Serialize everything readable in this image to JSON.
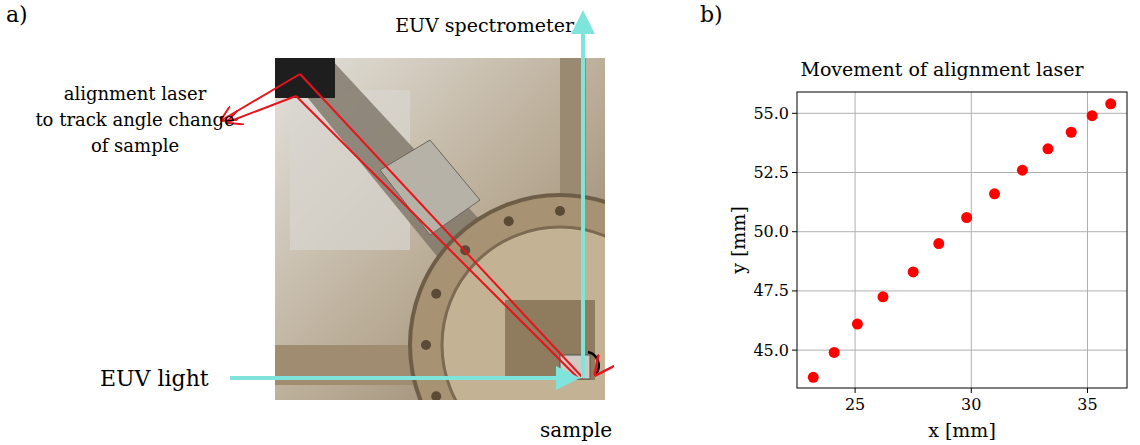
{
  "panel_a": {
    "label": "a)",
    "spectrometer_label": "EUV spectrometer",
    "laser_label": [
      "alignment laser",
      "to track angle change",
      "of sample"
    ],
    "light_label": "EUV light",
    "sample_label": "sample"
  },
  "chart_data": {
    "type": "scatter",
    "panel_label": "b)",
    "title": "Movement of alignment laser",
    "x_label": "x [mm]",
    "y_label": "y [mm]",
    "x": [
      23.2,
      24.1,
      25.1,
      26.2,
      27.5,
      28.6,
      29.8,
      31.0,
      32.2,
      33.3,
      34.3,
      35.2,
      36.0
    ],
    "values": [
      43.85,
      44.9,
      46.1,
      47.25,
      48.3,
      49.5,
      50.6,
      51.6,
      52.6,
      53.5,
      54.2,
      54.9,
      55.4
    ],
    "color": "#ff0000",
    "marker": "circle",
    "grid": true,
    "xlim": [
      22.5,
      36.7
    ],
    "ylim": [
      43.4,
      55.9
    ],
    "xticks": [
      25,
      30,
      35
    ],
    "yticks": [
      {
        "value": 45,
        "label": "45.0"
      },
      {
        "value": 47.5,
        "label": "47.5"
      },
      {
        "value": 50,
        "label": "50.0"
      },
      {
        "value": 52.5,
        "label": "52.5"
      },
      {
        "value": 55,
        "label": "55.0"
      }
    ]
  }
}
